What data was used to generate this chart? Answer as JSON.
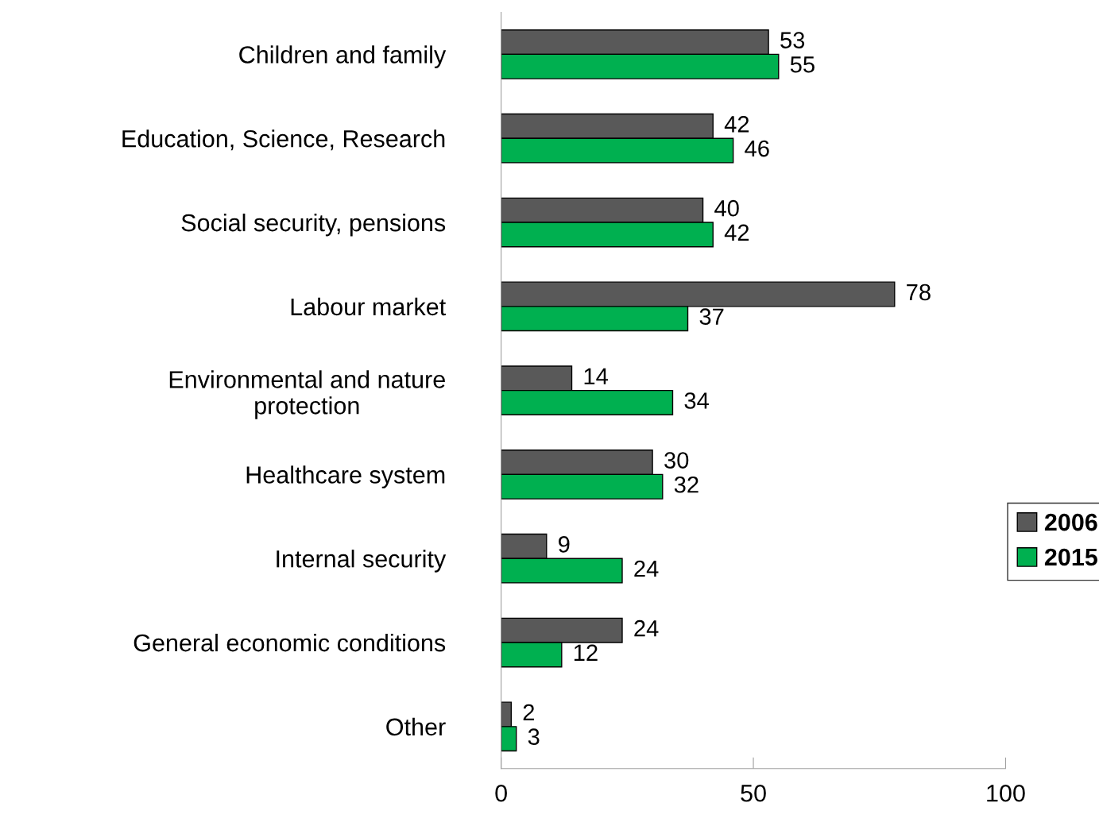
{
  "chart_data": {
    "type": "bar",
    "orientation": "horizontal",
    "categories": [
      "Children and family",
      "Education, Science, Research",
      "Social security, pensions",
      "Labour market",
      "Environmental and nature\nprotection",
      "Healthcare system",
      "Internal security",
      "General economic conditions",
      "Other"
    ],
    "series": [
      {
        "name": "2006",
        "color": "#595959",
        "values": [
          53,
          42,
          40,
          78,
          14,
          30,
          9,
          24,
          2
        ]
      },
      {
        "name": "2015",
        "color": "#00b050",
        "values": [
          55,
          46,
          42,
          37,
          34,
          32,
          24,
          12,
          3
        ]
      }
    ],
    "xlim": [
      0,
      100
    ],
    "xticks": [
      0,
      50,
      100
    ],
    "data_labels": true,
    "legend": "right",
    "grid": false
  }
}
